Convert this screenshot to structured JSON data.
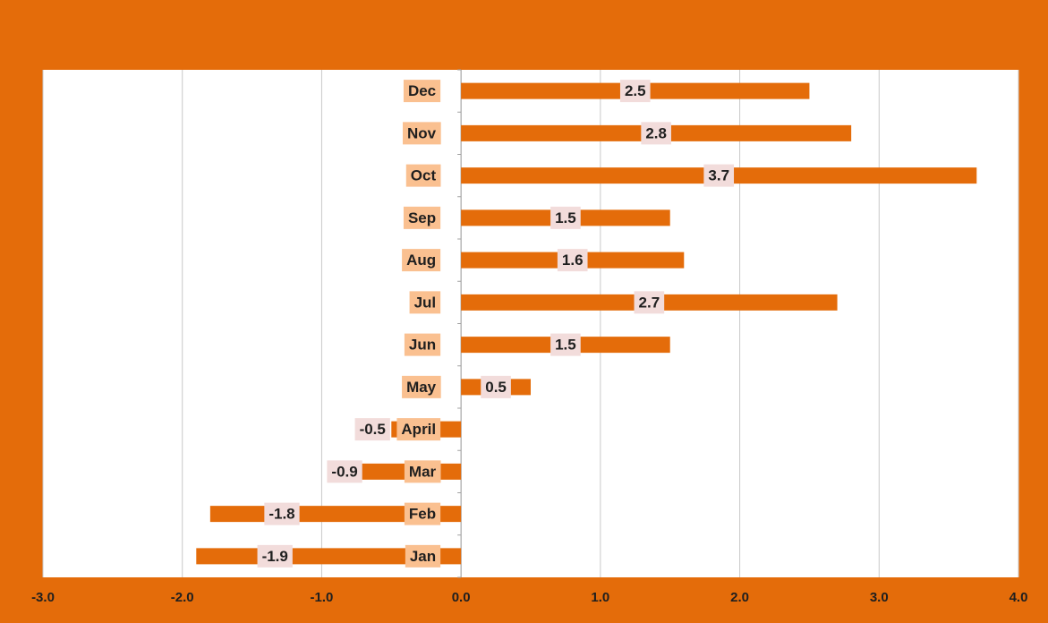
{
  "chart_data": {
    "type": "hbar",
    "categories": [
      "Jan",
      "Feb",
      "Mar",
      "April",
      "May",
      "Jun",
      "Jul",
      "Aug",
      "Sep",
      "Oct",
      "Nov",
      "Dec"
    ],
    "values": [
      -1.9,
      -1.8,
      -0.9,
      -0.5,
      0.5,
      1.5,
      2.7,
      1.6,
      1.5,
      3.7,
      2.8,
      2.5
    ],
    "color": "#e46c0a",
    "xlim": [
      -3,
      4
    ],
    "xticks": [
      {
        "value": -3,
        "label": "-3.0"
      },
      {
        "value": -2,
        "label": "-2.0"
      },
      {
        "value": -1,
        "label": "-1.0"
      },
      {
        "value": 0,
        "label": "0.0"
      },
      {
        "value": 1,
        "label": "1.0"
      },
      {
        "value": 2,
        "label": "2.0"
      },
      {
        "value": 3,
        "label": "3.0"
      },
      {
        "value": 4,
        "label": "4.0"
      }
    ],
    "grid": true
  }
}
